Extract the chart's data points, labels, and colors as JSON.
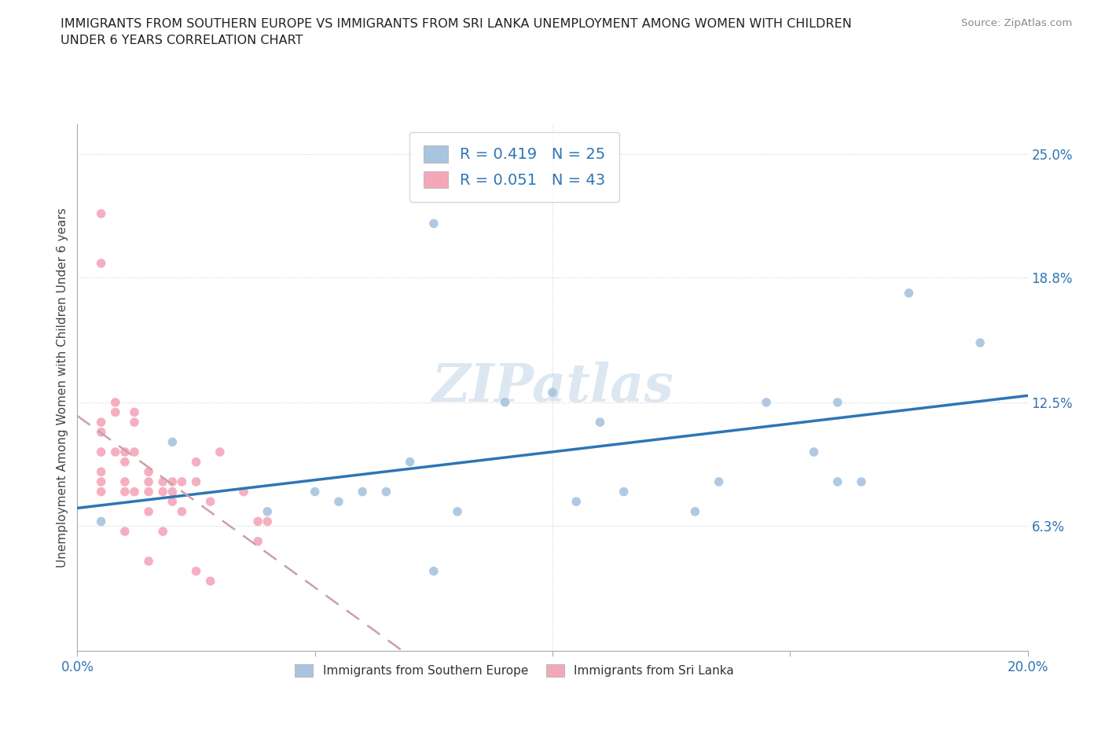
{
  "title": "IMMIGRANTS FROM SOUTHERN EUROPE VS IMMIGRANTS FROM SRI LANKA UNEMPLOYMENT AMONG WOMEN WITH CHILDREN\nUNDER 6 YEARS CORRELATION CHART",
  "source": "Source: ZipAtlas.com",
  "ylabel": "Unemployment Among Women with Children Under 6 years",
  "xlim": [
    0.0,
    0.2
  ],
  "ylim": [
    0.0,
    0.265
  ],
  "xtick_vals": [
    0.0,
    0.05,
    0.1,
    0.15,
    0.2
  ],
  "xtick_labels": [
    "0.0%",
    "",
    "",
    "",
    "20.0%"
  ],
  "ytick_right_vals": [
    0.063,
    0.125,
    0.188,
    0.25
  ],
  "ytick_right_labels": [
    "6.3%",
    "12.5%",
    "18.8%",
    "25.0%"
  ],
  "R_blue": 0.419,
  "N_blue": 25,
  "R_pink": 0.051,
  "N_pink": 43,
  "blue_color": "#a8c4e0",
  "pink_color": "#f4a7b9",
  "blue_line_color": "#2e75b6",
  "pink_line_color": "#c9a0aa",
  "watermark": "ZIPatlas",
  "blue_scatter_x": [
    0.005,
    0.02,
    0.04,
    0.05,
    0.055,
    0.06,
    0.065,
    0.07,
    0.075,
    0.08,
    0.09,
    0.1,
    0.105,
    0.11,
    0.115,
    0.13,
    0.145,
    0.155,
    0.16,
    0.16,
    0.165,
    0.175,
    0.19,
    0.075,
    0.135
  ],
  "blue_scatter_y": [
    0.065,
    0.105,
    0.07,
    0.08,
    0.075,
    0.08,
    0.08,
    0.095,
    0.215,
    0.07,
    0.125,
    0.13,
    0.075,
    0.115,
    0.08,
    0.07,
    0.125,
    0.1,
    0.125,
    0.085,
    0.085,
    0.18,
    0.155,
    0.04,
    0.085
  ],
  "pink_scatter_x": [
    0.005,
    0.005,
    0.005,
    0.005,
    0.005,
    0.005,
    0.005,
    0.005,
    0.008,
    0.008,
    0.008,
    0.01,
    0.01,
    0.01,
    0.01,
    0.01,
    0.012,
    0.012,
    0.012,
    0.012,
    0.015,
    0.015,
    0.015,
    0.015,
    0.015,
    0.018,
    0.018,
    0.018,
    0.02,
    0.02,
    0.02,
    0.022,
    0.022,
    0.025,
    0.025,
    0.025,
    0.028,
    0.028,
    0.03,
    0.035,
    0.038,
    0.038,
    0.04
  ],
  "pink_scatter_y": [
    0.22,
    0.195,
    0.115,
    0.11,
    0.1,
    0.09,
    0.085,
    0.08,
    0.125,
    0.12,
    0.1,
    0.1,
    0.095,
    0.085,
    0.08,
    0.06,
    0.12,
    0.115,
    0.1,
    0.08,
    0.09,
    0.085,
    0.08,
    0.07,
    0.045,
    0.085,
    0.08,
    0.06,
    0.085,
    0.08,
    0.075,
    0.085,
    0.07,
    0.095,
    0.085,
    0.04,
    0.075,
    0.035,
    0.1,
    0.08,
    0.065,
    0.055,
    0.065
  ],
  "legend_entry_1": "Immigrants from Southern Europe",
  "legend_entry_2": "Immigrants from Sri Lanka"
}
